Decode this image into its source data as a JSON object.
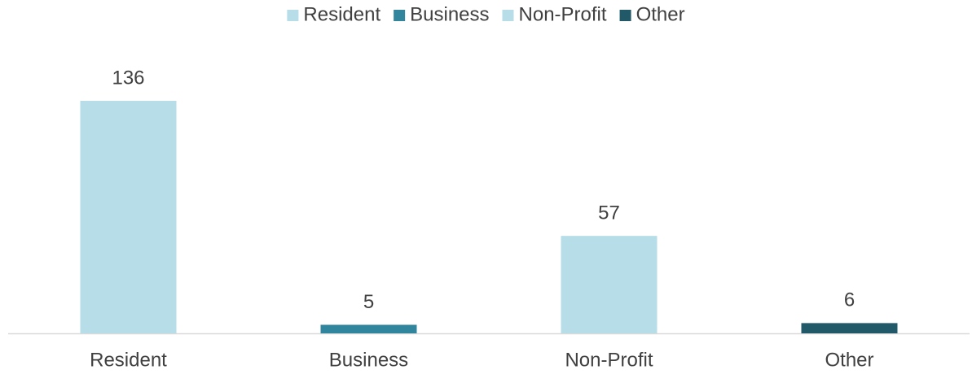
{
  "chart_data": {
    "type": "bar",
    "categories": [
      "Resident",
      "Business",
      "Non-Profit",
      "Other"
    ],
    "values": [
      136,
      5,
      57,
      6
    ],
    "colors": [
      "#b7dde8",
      "#31859c",
      "#b7dde8",
      "#215968"
    ],
    "legend": "top",
    "data_labels": true
  }
}
